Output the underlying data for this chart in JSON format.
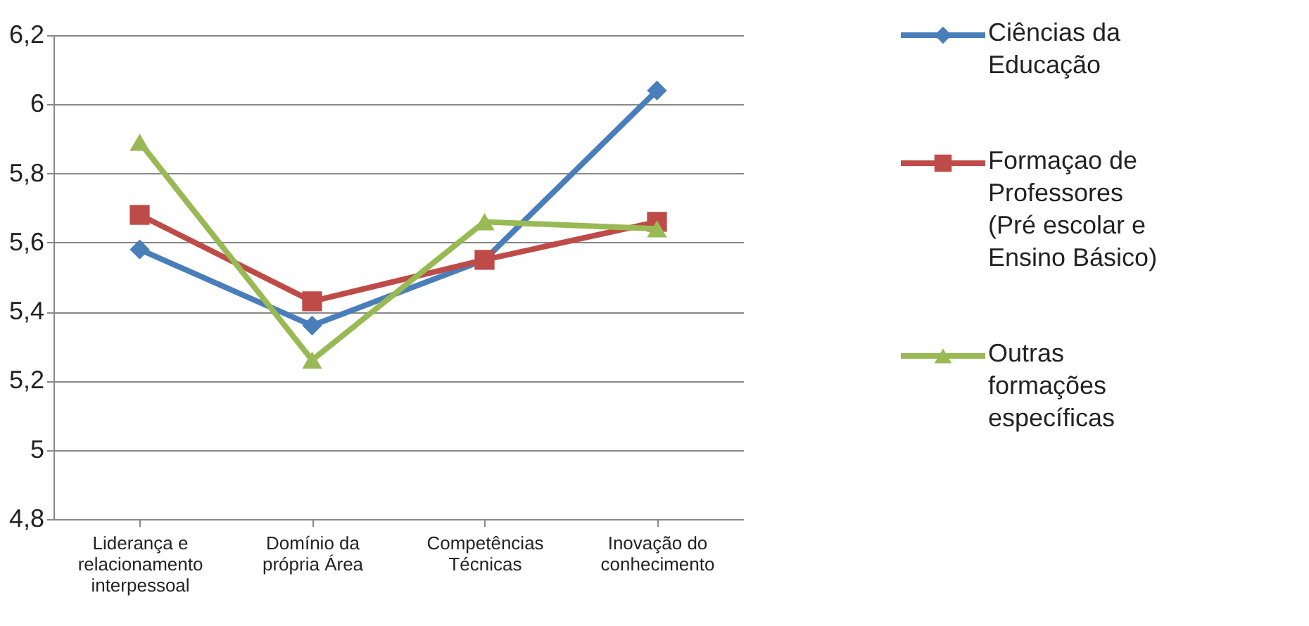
{
  "chart_data": {
    "type": "line",
    "categories": [
      "Liderança e relacionamento interpessoal",
      "Domínio da própria Área",
      "Competências Técnicas",
      "Inovação do conhecimento"
    ],
    "series": [
      {
        "name": "Ciências da Educação",
        "color": "#4a7ebb",
        "marker": "diamond",
        "values": [
          5.58,
          5.36,
          5.55,
          6.04
        ]
      },
      {
        "name": "Formaçao de Professores (Pré escolar e Ensino Básico)",
        "color": "#be4b48",
        "marker": "square",
        "values": [
          5.68,
          5.43,
          5.55,
          5.66
        ]
      },
      {
        "name": "Outras formações específicas",
        "color": "#98b954",
        "marker": "triangle",
        "values": [
          5.89,
          5.26,
          5.66,
          5.64
        ]
      }
    ],
    "ylim": [
      4.8,
      6.2
    ],
    "yticks": [
      {
        "value": 4.8,
        "label": "4,8"
      },
      {
        "value": 5,
        "label": "5"
      },
      {
        "value": 5.2,
        "label": "5,2"
      },
      {
        "value": 5.4,
        "label": "5,4"
      },
      {
        "value": 5.6,
        "label": "5,6"
      },
      {
        "value": 5.8,
        "label": "5,8"
      },
      {
        "value": 6,
        "label": "6"
      },
      {
        "value": 6.2,
        "label": "6,2"
      }
    ],
    "grid": "y",
    "legend": "right",
    "line_style": "solid"
  }
}
